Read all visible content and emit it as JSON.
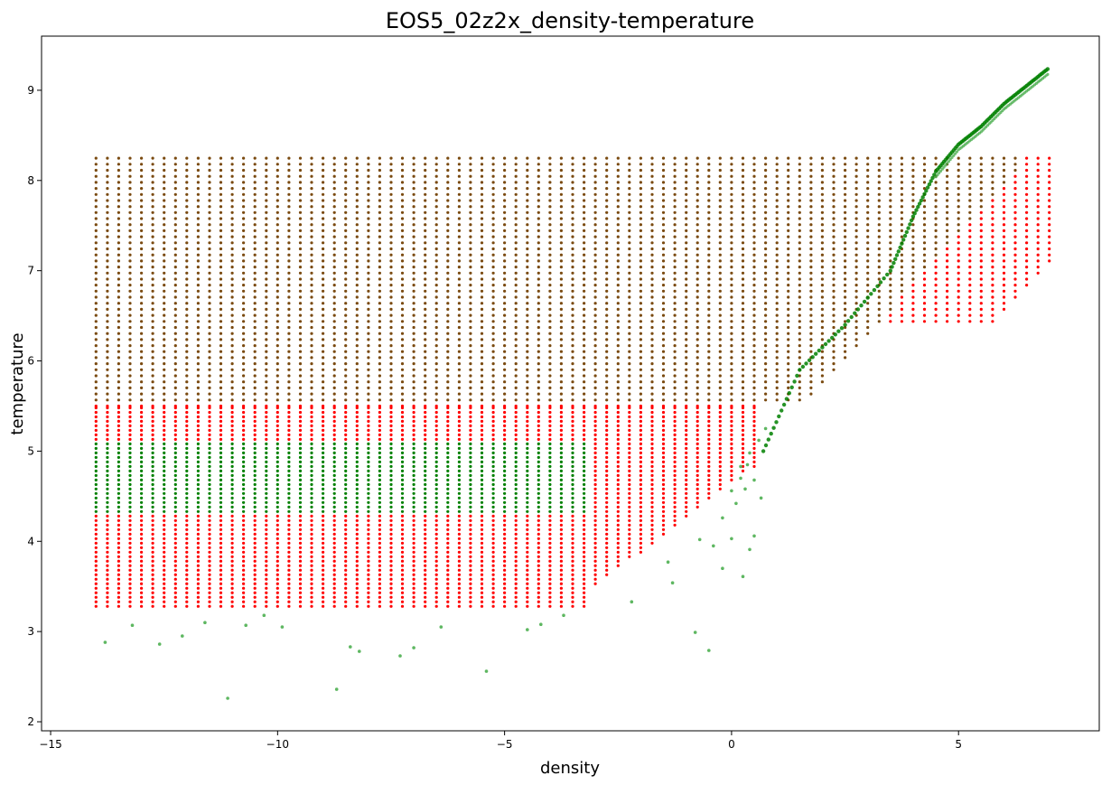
{
  "chart_data": {
    "type": "scatter",
    "title": "EOS5_02z2x_density-temperature",
    "xlabel": "density",
    "ylabel": "temperature",
    "xlim": [
      -15.2,
      8.1
    ],
    "ylim": [
      1.9,
      9.6
    ],
    "xticks": [
      -15,
      -10,
      -5,
      0,
      5
    ],
    "xtick_labels": [
      "−15",
      "−10",
      "−5",
      "0",
      "5"
    ],
    "yticks": [
      2,
      3,
      4,
      5,
      6,
      7,
      8,
      9
    ],
    "ytick_labels": [
      "2",
      "3",
      "4",
      "5",
      "6",
      "7",
      "8",
      "9"
    ],
    "grid": false,
    "legend": "none",
    "colors": {
      "red_series": "#ff0000",
      "green_series": "#008000",
      "green_faint": "#4caf50",
      "overlap": "#7a4a10",
      "axis": "#000000"
    },
    "series": [
      {
        "color": "red",
        "description_values": {
          "density_range": [
            -14.0,
            7.0
          ],
          "temperature_range": [
            3.28,
            8.3
          ],
          "lower_edge_step_density": [
            -3.2,
            0.65
          ],
          "upper_block_density_range": [
            2.8,
            7.0
          ],
          "upper_block_temperature_range": [
            6.4,
            8.3
          ]
        }
      },
      {
        "color": "green",
        "curve": [
          [
            0.7,
            5.0
          ],
          [
            1.5,
            5.9
          ],
          [
            2.5,
            6.4
          ],
          [
            3.5,
            7.0
          ],
          [
            4.0,
            7.6
          ],
          [
            4.5,
            8.1
          ],
          [
            5.0,
            8.4
          ],
          [
            5.5,
            8.6
          ],
          [
            6.0,
            8.85
          ],
          [
            6.5,
            9.05
          ],
          [
            7.0,
            9.25
          ]
        ],
        "outliers": [
          [
            -13.8,
            2.88
          ],
          [
            -13.2,
            3.07
          ],
          [
            -12.6,
            2.86
          ],
          [
            -12.1,
            2.95
          ],
          [
            -11.6,
            3.1
          ],
          [
            -11.1,
            2.26
          ],
          [
            -10.7,
            3.07
          ],
          [
            -10.3,
            3.18
          ],
          [
            -9.9,
            3.05
          ],
          [
            -8.7,
            2.36
          ],
          [
            -8.4,
            2.83
          ],
          [
            -8.2,
            2.78
          ],
          [
            -7.3,
            2.73
          ],
          [
            -7.0,
            2.82
          ],
          [
            -6.4,
            3.05
          ],
          [
            -5.4,
            2.56
          ],
          [
            -4.5,
            3.02
          ],
          [
            -4.2,
            3.08
          ],
          [
            -3.7,
            3.18
          ],
          [
            -2.2,
            3.33
          ],
          [
            -1.4,
            3.77
          ],
          [
            -1.3,
            3.54
          ],
          [
            -0.8,
            2.99
          ],
          [
            -0.5,
            2.79
          ],
          [
            -0.4,
            3.95
          ],
          [
            -0.7,
            4.02
          ],
          [
            -0.2,
            3.7
          ],
          [
            0.0,
            4.03
          ],
          [
            0.25,
            3.61
          ],
          [
            0.4,
            3.91
          ],
          [
            0.5,
            4.06
          ],
          [
            0.1,
            4.42
          ],
          [
            0.3,
            4.58
          ],
          [
            0.5,
            4.68
          ],
          [
            0.65,
            4.48
          ],
          [
            0.2,
            4.83
          ],
          [
            0.4,
            4.98
          ],
          [
            0.6,
            5.12
          ],
          [
            0.75,
            5.25
          ],
          [
            -0.2,
            4.26
          ],
          [
            0.0,
            4.56
          ],
          [
            0.2,
            4.7
          ],
          [
            0.35,
            4.85
          ]
        ]
      }
    ]
  }
}
